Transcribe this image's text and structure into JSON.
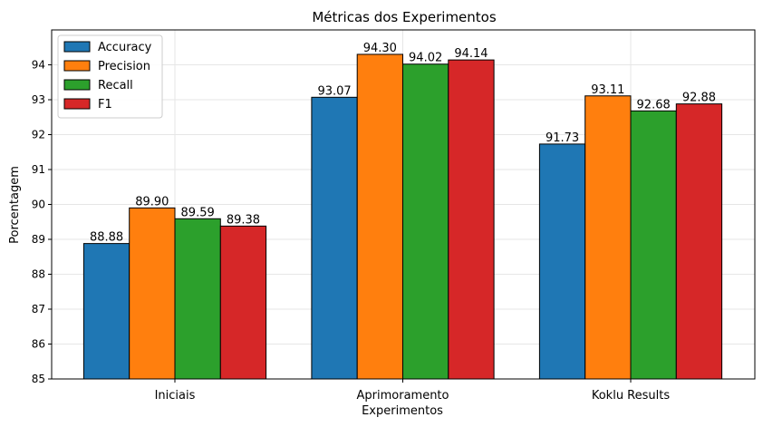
{
  "chart_data": {
    "type": "bar",
    "title": "Métricas dos Experimentos",
    "xlabel": "Experimentos",
    "ylabel": "Porcentagem",
    "categories": [
      "Iniciais",
      "Aprimoramento",
      "Koklu Results"
    ],
    "ylim": [
      85,
      95
    ],
    "yticks": [
      85,
      86,
      87,
      88,
      89,
      90,
      91,
      92,
      93,
      94
    ],
    "grid": true,
    "legend_position": "top-left",
    "series": [
      {
        "name": "Accuracy",
        "color": "#1f77b4",
        "values": [
          88.88,
          93.07,
          91.73
        ],
        "labels": [
          "88.88",
          "93.07",
          "91.73"
        ]
      },
      {
        "name": "Precision",
        "color": "#ff7f0e",
        "values": [
          89.9,
          94.3,
          93.11
        ],
        "labels": [
          "89.90",
          "94.30",
          "93.11"
        ]
      },
      {
        "name": "Recall",
        "color": "#2ca02c",
        "values": [
          89.59,
          94.02,
          92.68
        ],
        "labels": [
          "89.59",
          "94.02",
          "92.68"
        ]
      },
      {
        "name": "F1",
        "color": "#d62728",
        "values": [
          89.38,
          94.14,
          92.88
        ],
        "labels": [
          "89.38",
          "94.14",
          "92.88"
        ]
      }
    ]
  }
}
